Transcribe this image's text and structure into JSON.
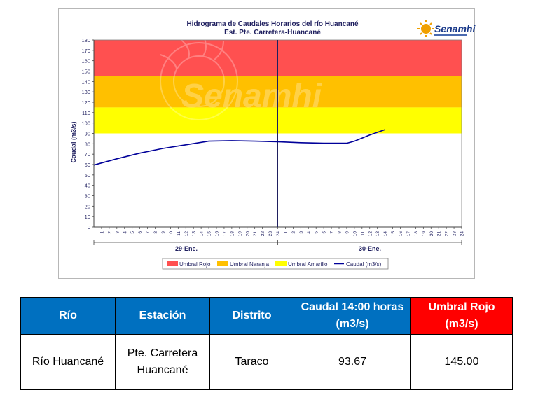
{
  "chart_data": {
    "type": "line",
    "title": "Hidrograma de Caudales Horarios del río Huancané",
    "subtitle": "Est. Pte. Carretera-Huancané",
    "logo_text": "Senamhi",
    "watermark_text": "Senamhi",
    "ylabel": "Caudal  (m3/s)",
    "ylim": [
      0,
      180
    ],
    "yticks": [
      "0",
      "10",
      "20",
      "30",
      "40",
      "50",
      "60",
      "70",
      "80",
      "90",
      "100",
      "110",
      "120",
      "130",
      "140",
      "150",
      "160",
      "170",
      "180"
    ],
    "hour_ticks": [
      "1",
      "2",
      "3",
      "4",
      "5",
      "6",
      "7",
      "8",
      "9",
      "10",
      "11",
      "12",
      "13",
      "14",
      "15",
      "16",
      "17",
      "18",
      "19",
      "20",
      "21",
      "22",
      "23",
      "24"
    ],
    "days": [
      "29-Ene.",
      "30-Ene."
    ],
    "thresholds": [
      {
        "name": "Umbral Rojo",
        "from": 145,
        "to": 180,
        "color": "#ff5050"
      },
      {
        "name": "Umbral Naranja",
        "from": 115,
        "to": 145,
        "color": "#ffc000"
      },
      {
        "name": "Umbral Amarillo",
        "from": 90,
        "to": 115,
        "color": "#ffff00"
      }
    ],
    "series": [
      {
        "name": "Caudal (m3/s)",
        "color": "#000099",
        "x": [
          0,
          3,
          6,
          9,
          12,
          15,
          18,
          21,
          24,
          27,
          30,
          33,
          34,
          35,
          36,
          37,
          38
        ],
        "y": [
          59.5,
          65.5,
          71,
          75.5,
          79,
          82.5,
          83,
          82.5,
          82,
          81,
          80.5,
          80.5,
          82.5,
          85.5,
          88.5,
          91,
          93.67
        ]
      }
    ],
    "legend": [
      {
        "label": "Umbral Rojo",
        "kind": "box",
        "color": "#ff5050"
      },
      {
        "label": "Umbral Naranja",
        "kind": "box",
        "color": "#ffc000"
      },
      {
        "label": "Umbral Amarillo",
        "kind": "box",
        "color": "#ffff00"
      },
      {
        "label": "Caudal (m3/s)",
        "kind": "line",
        "color": "#000099"
      }
    ],
    "legend_position": "bottom",
    "grid": false
  },
  "table": {
    "headers": [
      "Río",
      "Estación",
      "Distrito",
      "Caudal 14:00 horas (m3/s)",
      "Umbral Rojo (m3/s)"
    ],
    "rows": [
      [
        "Río Huancané",
        "Pte. Carretera Huancané",
        "Taraco",
        "93.67",
        "145.00"
      ]
    ]
  }
}
